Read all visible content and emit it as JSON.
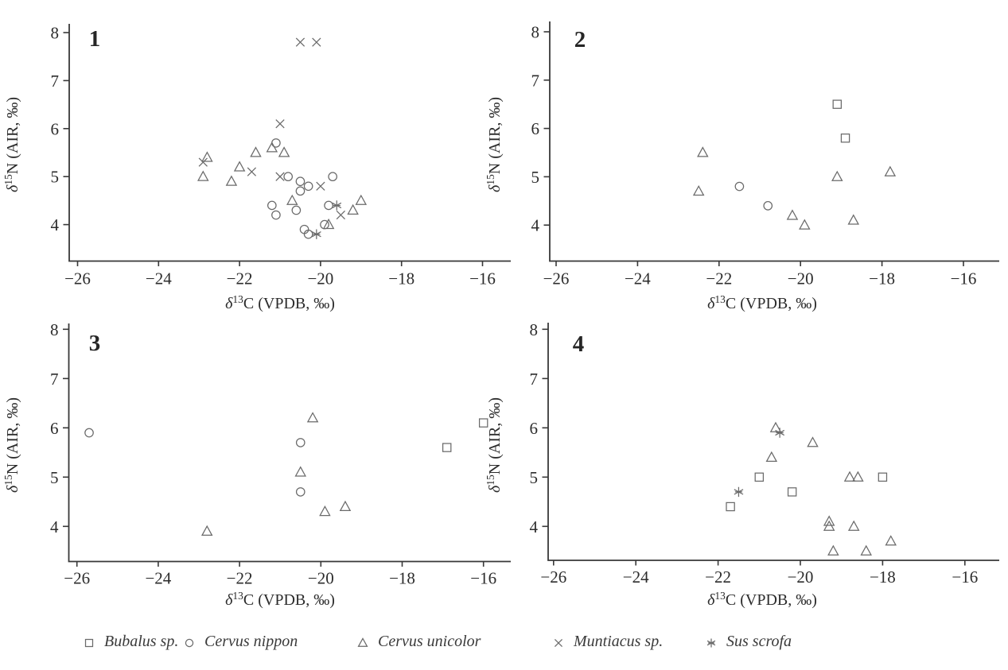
{
  "figure": {
    "type": "four-panel stable isotope scatter plots",
    "panel_numbers": [
      "1",
      "2",
      "3",
      "4"
    ]
  },
  "axes": {
    "xlabel": {
      "delta": "δ",
      "sup": "13",
      "rest": "C (VPDB, ‰)"
    },
    "ylabel": {
      "delta": "δ",
      "sup": "15",
      "rest": "N (AIR, ‰)"
    },
    "x_tick_labels": [
      "−26",
      "−24",
      "−22",
      "−20",
      "−18",
      "−16"
    ],
    "y_tick_labels": [
      "8",
      "7",
      "6",
      "5",
      "4"
    ],
    "x_ticks": [
      -26,
      -24,
      -22,
      -20,
      -18,
      -16
    ],
    "y_ticks": [
      8,
      7,
      6,
      5,
      4
    ]
  },
  "colors": {
    "marker": "#6a6a6a",
    "axis": "#383838",
    "text": "#2c2c2c",
    "background": "#ffffff"
  },
  "legend": [
    {
      "marker": "square",
      "label": "Bubalus sp."
    },
    {
      "marker": "circle",
      "label": "Cervus nippon"
    },
    {
      "marker": "triangle",
      "label": "Cervus unicolor"
    },
    {
      "marker": "x",
      "label": "Muntiacus sp."
    },
    {
      "marker": "asterisk",
      "label": "Sus scrofa"
    }
  ],
  "chart_data": [
    {
      "type": "scatter",
      "panel": "1",
      "xlabel": "δ13C (VPDB, ‰)",
      "ylabel": "δ15N (AIR, ‰)",
      "xlim": [
        -26.2,
        -15.6
      ],
      "ylim": [
        3.3,
        8.2
      ],
      "series": [
        {
          "name": "Cervus nippon",
          "marker": "circle",
          "points": [
            [
              -21.1,
              5.7
            ],
            [
              -20.8,
              5.0
            ],
            [
              -20.5,
              4.9
            ],
            [
              -20.3,
              4.8
            ],
            [
              -20.5,
              4.7
            ],
            [
              -19.7,
              5.0
            ],
            [
              -21.2,
              4.4
            ],
            [
              -20.6,
              4.3
            ],
            [
              -21.1,
              4.2
            ],
            [
              -19.8,
              4.4
            ],
            [
              -19.9,
              4.0
            ],
            [
              -20.4,
              3.9
            ],
            [
              -20.3,
              3.8
            ]
          ]
        },
        {
          "name": "Cervus unicolor",
          "marker": "triangle",
          "points": [
            [
              -22.8,
              5.4
            ],
            [
              -22.9,
              5.0
            ],
            [
              -22.0,
              5.2
            ],
            [
              -22.2,
              4.9
            ],
            [
              -21.6,
              5.5
            ],
            [
              -21.2,
              5.6
            ],
            [
              -20.9,
              5.5
            ],
            [
              -20.7,
              4.5
            ],
            [
              -19.8,
              4.0
            ],
            [
              -19.2,
              4.3
            ],
            [
              -19.0,
              4.5
            ]
          ]
        },
        {
          "name": "Muntiacus sp.",
          "marker": "x",
          "points": [
            [
              -20.5,
              7.8
            ],
            [
              -20.1,
              7.8
            ],
            [
              -21.0,
              6.1
            ],
            [
              -22.9,
              5.3
            ],
            [
              -21.7,
              5.1
            ],
            [
              -21.0,
              5.0
            ],
            [
              -20.0,
              4.8
            ],
            [
              -19.5,
              4.2
            ]
          ]
        },
        {
          "name": "Sus scrofa",
          "marker": "asterisk",
          "points": [
            [
              -19.6,
              4.4
            ],
            [
              -20.1,
              3.8
            ]
          ]
        }
      ]
    },
    {
      "type": "scatter",
      "panel": "2",
      "xlabel": "δ13C (VPDB, ‰)",
      "ylabel": "δ15N (AIR, ‰)",
      "xlim": [
        -26.2,
        -15.6
      ],
      "ylim": [
        3.3,
        8.2
      ],
      "series": [
        {
          "name": "Bubalus sp.",
          "marker": "square",
          "points": [
            [
              -19.1,
              6.5
            ],
            [
              -18.9,
              5.8
            ]
          ]
        },
        {
          "name": "Cervus nippon",
          "marker": "circle",
          "points": [
            [
              -21.5,
              4.8
            ],
            [
              -20.8,
              4.4
            ]
          ]
        },
        {
          "name": "Cervus unicolor",
          "marker": "triangle",
          "points": [
            [
              -22.4,
              5.5
            ],
            [
              -22.5,
              4.7
            ],
            [
              -19.1,
              5.0
            ],
            [
              -17.8,
              5.1
            ],
            [
              -20.2,
              4.2
            ],
            [
              -19.9,
              4.0
            ],
            [
              -18.7,
              4.1
            ]
          ]
        }
      ]
    },
    {
      "type": "scatter",
      "panel": "3",
      "xlabel": "δ13C (VPDB, ‰)",
      "ylabel": "δ15N (AIR, ‰)",
      "xlim": [
        -26.2,
        -15.6
      ],
      "ylim": [
        3.3,
        8.2
      ],
      "series": [
        {
          "name": "Bubalus sp.",
          "marker": "square",
          "points": [
            [
              -16.9,
              5.6
            ],
            [
              -16.0,
              6.1
            ]
          ]
        },
        {
          "name": "Cervus nippon",
          "marker": "circle",
          "points": [
            [
              -25.7,
              5.9
            ],
            [
              -20.5,
              5.7
            ],
            [
              -20.5,
              4.7
            ]
          ]
        },
        {
          "name": "Cervus unicolor",
          "marker": "triangle",
          "points": [
            [
              -20.2,
              6.2
            ],
            [
              -20.5,
              5.1
            ],
            [
              -19.9,
              4.3
            ],
            [
              -19.4,
              4.4
            ],
            [
              -22.8,
              3.9
            ]
          ]
        }
      ]
    },
    {
      "type": "scatter",
      "panel": "4",
      "xlabel": "δ13C (VPDB, ‰)",
      "ylabel": "δ15N (AIR, ‰)",
      "xlim": [
        -26.2,
        -15.6
      ],
      "ylim": [
        3.3,
        8.2
      ],
      "series": [
        {
          "name": "Bubalus sp.",
          "marker": "square",
          "points": [
            [
              -21.0,
              5.0
            ],
            [
              -21.7,
              4.4
            ],
            [
              -20.2,
              4.7
            ],
            [
              -18.0,
              5.0
            ]
          ]
        },
        {
          "name": "Cervus unicolor",
          "marker": "triangle",
          "points": [
            [
              -20.6,
              6.0
            ],
            [
              -19.7,
              5.7
            ],
            [
              -20.7,
              5.4
            ],
            [
              -18.8,
              5.0
            ],
            [
              -18.6,
              5.0
            ],
            [
              -19.3,
              4.1
            ],
            [
              -19.3,
              4.0
            ],
            [
              -18.7,
              4.0
            ],
            [
              -17.8,
              3.7
            ],
            [
              -19.2,
              3.5
            ],
            [
              -18.4,
              3.5
            ]
          ]
        },
        {
          "name": "Sus scrofa",
          "marker": "asterisk",
          "points": [
            [
              -20.5,
              5.9
            ],
            [
              -21.5,
              4.7
            ]
          ]
        }
      ]
    }
  ]
}
